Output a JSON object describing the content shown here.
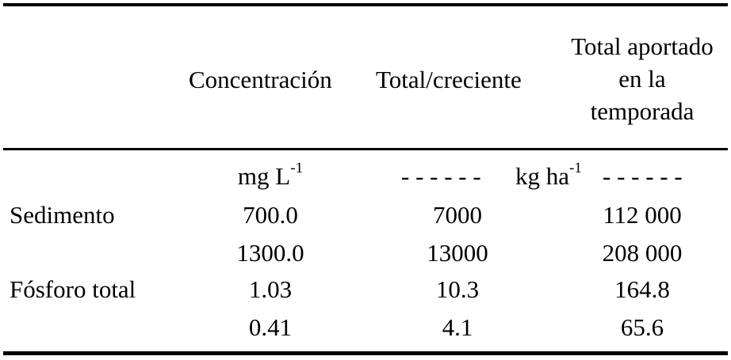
{
  "table": {
    "headers": {
      "concentration": "Concentración",
      "per_flood": "Total/creciente",
      "season_total_line1": "Total aportado",
      "season_total_line2": "en la",
      "season_total_line3": "temporada"
    },
    "units": {
      "concentration_base": "mg L",
      "concentration_exp": "-1",
      "mass_dashes_left": "- - - - - -",
      "mass_base": "kg ha",
      "mass_exp": "-1",
      "mass_dashes_right": "- - - - - -"
    },
    "rows": [
      {
        "label": "Sedimento",
        "concentration": "700.0",
        "per_flood": "7000",
        "season_total": "112 000"
      },
      {
        "label": "",
        "concentration": "1300.0",
        "per_flood": "13000",
        "season_total": "208 000"
      },
      {
        "label": "Fósforo total",
        "concentration": "1.03",
        "per_flood": "10.3",
        "season_total": "164.8"
      },
      {
        "label": "",
        "concentration": "0.41",
        "per_flood": "4.1",
        "season_total": "65.6"
      }
    ]
  }
}
